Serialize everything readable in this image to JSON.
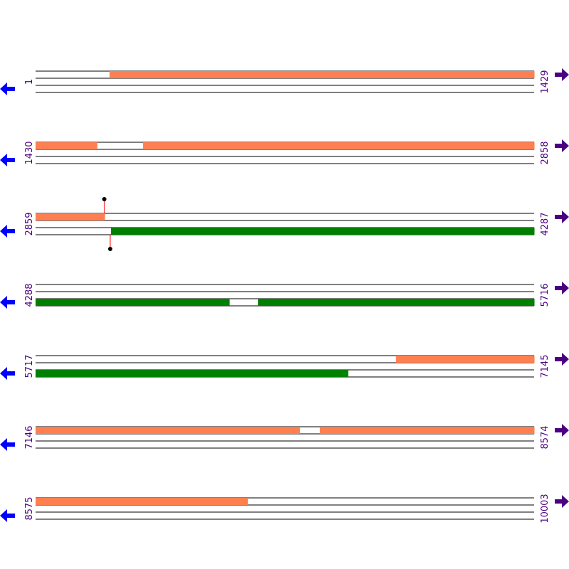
{
  "colors": {
    "forward_feature": "#ff7f50",
    "reverse_feature": "#008000",
    "label": "#4b0082",
    "left_arrow": "#0000ff",
    "right_arrow": "#4b0082",
    "marker_stem": "#ff0000"
  },
  "icons": {
    "left": "arrow-left-icon",
    "right": "arrow-right-icon"
  },
  "bp_per_row": 1429,
  "rows": [
    {
      "start": "1",
      "end": "1429",
      "features": [
        {
          "strand": "top",
          "from": 213,
          "to": 1429
        }
      ]
    },
    {
      "start": "1430",
      "end": "2858",
      "features": [
        {
          "strand": "top",
          "from": 1430,
          "to": 1605
        },
        {
          "strand": "top",
          "from": 1738,
          "to": 2858
        }
      ]
    },
    {
      "start": "2859",
      "end": "4287",
      "features": [
        {
          "strand": "top",
          "from": 2859,
          "to": 3056
        },
        {
          "strand": "bottom",
          "from": 3075,
          "to": 4287
        }
      ],
      "markers": [
        {
          "strand": "top",
          "pos": 3056
        },
        {
          "strand": "bottom",
          "pos": 3073
        }
      ]
    },
    {
      "start": "4288",
      "end": "5716",
      "features": [
        {
          "strand": "bottom",
          "from": 4288,
          "to": 4842
        },
        {
          "strand": "bottom",
          "from": 4926,
          "to": 5716
        }
      ]
    },
    {
      "start": "5717",
      "end": "7145",
      "features": [
        {
          "strand": "top",
          "from": 6750,
          "to": 7145
        },
        {
          "strand": "bottom",
          "from": 5717,
          "to": 6611
        }
      ]
    },
    {
      "start": "7146",
      "end": "8574",
      "features": [
        {
          "strand": "top",
          "from": 7146,
          "to": 7902
        },
        {
          "strand": "top",
          "from": 7961,
          "to": 8574
        }
      ]
    },
    {
      "start": "8575",
      "end": "10003",
      "features": [
        {
          "strand": "top",
          "from": 8575,
          "to": 9182
        }
      ]
    }
  ]
}
